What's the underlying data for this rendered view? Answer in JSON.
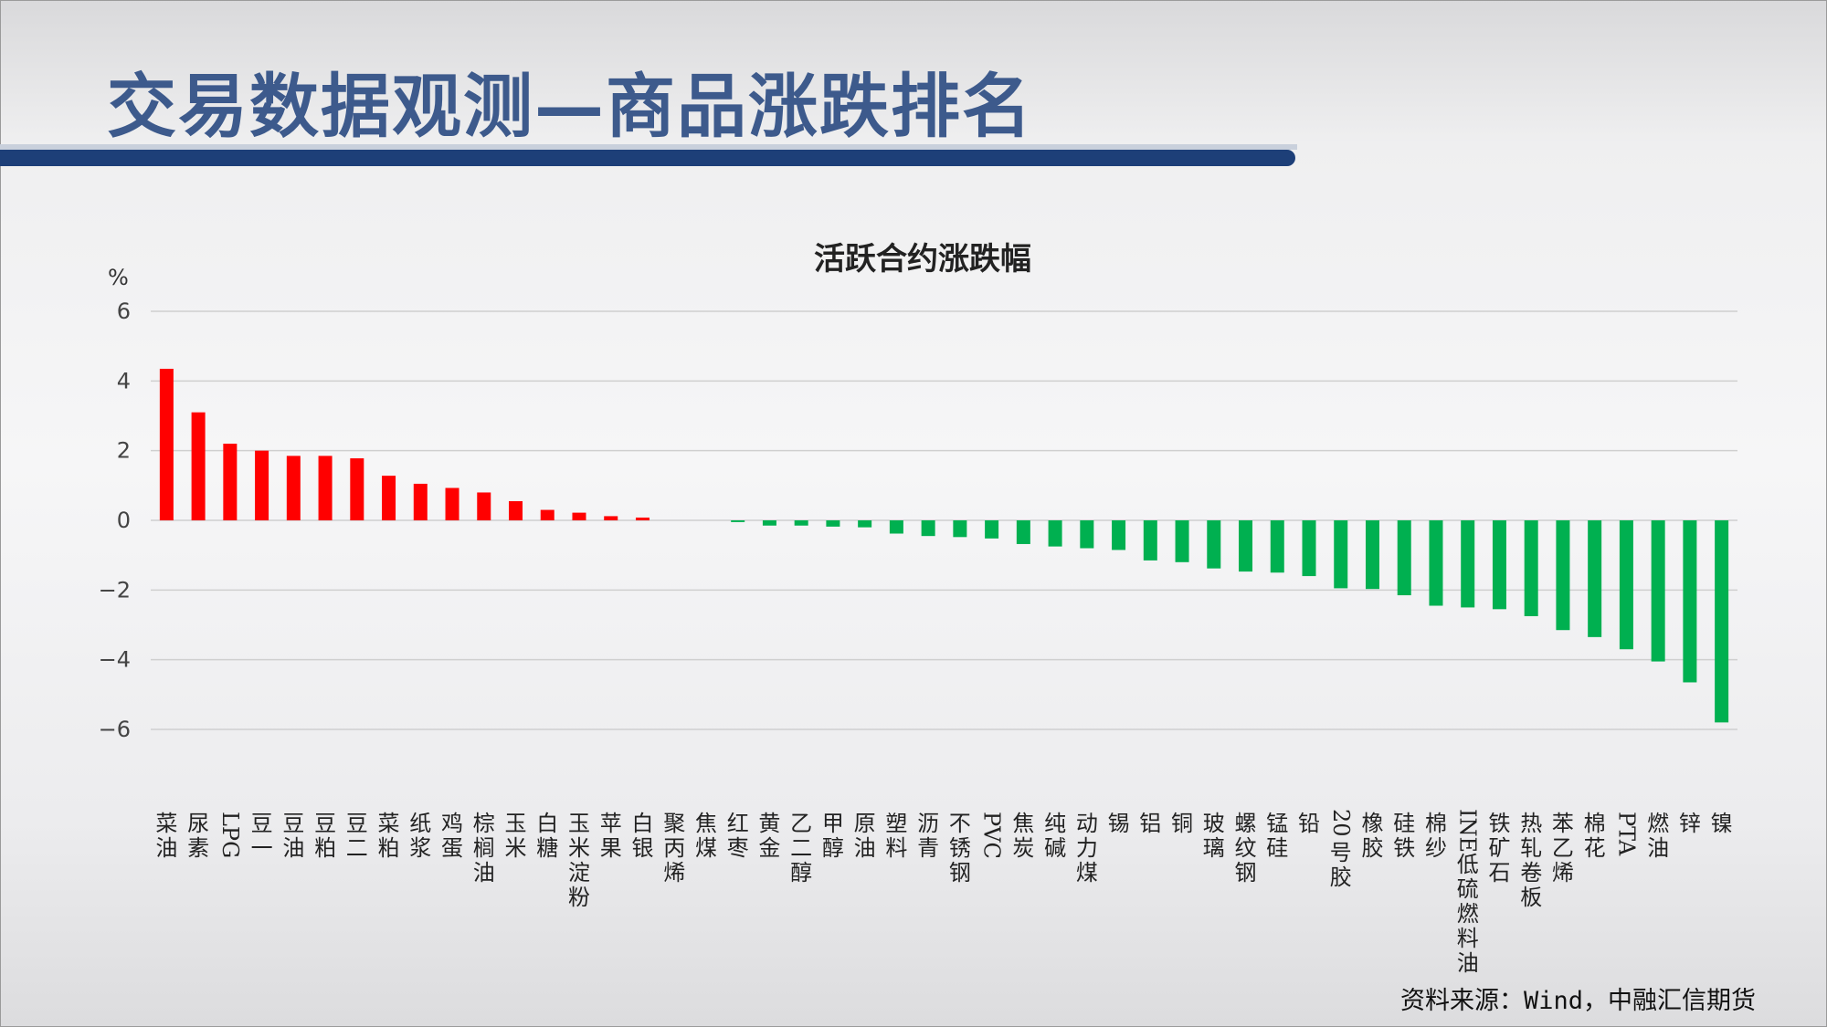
{
  "page_title": "交易数据观测—商品涨跌排名",
  "source": "资料来源：Wind，中融汇信期货",
  "colors": {
    "positive": "#ff0000",
    "negative": "#00b050",
    "title": "#3d5a8c",
    "title_bar": "#1d3f78"
  },
  "chart_data": {
    "type": "bar",
    "title": "活跃合约涨跌幅",
    "ylabel": "%",
    "ylim": [
      -6,
      6
    ],
    "yticks": [
      "6",
      "4",
      "2",
      "0",
      "-2",
      "-4",
      "-6"
    ],
    "grid": true,
    "categories": [
      "菜油",
      "尿素",
      "LPG",
      "豆一",
      "豆油",
      "豆粕",
      "豆二",
      "菜粕",
      "纸浆",
      "鸡蛋",
      "棕榈油",
      "玉米",
      "白糖",
      "玉米淀粉",
      "苹果",
      "白银",
      "聚丙烯",
      "焦煤",
      "红枣",
      "黄金",
      "乙二醇",
      "甲醇",
      "原油",
      "塑料",
      "沥青",
      "不锈钢",
      "PVC",
      "焦炭",
      "纯碱",
      "动力煤",
      "锡",
      "铝",
      "铜",
      "玻璃",
      "螺纹钢",
      "锰硅",
      "铅",
      "20号胶",
      "橡胶",
      "硅铁",
      "棉纱",
      "INE低硫燃料油",
      "铁矿石",
      "热轧卷板",
      "苯乙烯",
      "棉花",
      "PTA",
      "燃油",
      "锌",
      "镍"
    ],
    "values": [
      4.35,
      3.1,
      2.2,
      2.0,
      1.85,
      1.85,
      1.78,
      1.28,
      1.05,
      0.93,
      0.8,
      0.55,
      0.3,
      0.22,
      0.12,
      0.08,
      0.0,
      0.0,
      -0.05,
      -0.15,
      -0.15,
      -0.18,
      -0.2,
      -0.38,
      -0.45,
      -0.48,
      -0.52,
      -0.68,
      -0.75,
      -0.8,
      -0.85,
      -1.15,
      -1.2,
      -1.38,
      -1.47,
      -1.5,
      -1.6,
      -1.95,
      -1.97,
      -2.15,
      -2.45,
      -2.5,
      -2.55,
      -2.75,
      -3.15,
      -3.35,
      -3.7,
      -4.05,
      -4.65,
      -5.8
    ]
  }
}
